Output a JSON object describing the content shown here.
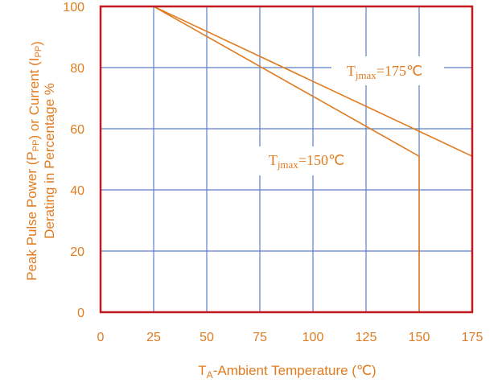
{
  "chart_data": {
    "type": "line",
    "xlabel": {
      "main": "T",
      "sub": "A",
      "rest": "-Ambient Temperature (℃)"
    },
    "ylabel": {
      "line1": [
        {
          "t": "Peak Pulse Power (P"
        },
        {
          "t": "PP",
          "sub": true
        },
        {
          "t": ") or Current (I"
        },
        {
          "t": "PP",
          "sub": true
        },
        {
          "t": ")"
        }
      ],
      "line2": "Derating in Percentage %"
    },
    "xlim": [
      0,
      175
    ],
    "ylim": [
      0,
      100
    ],
    "x_ticks": [
      "0",
      "25",
      "50",
      "75",
      "100",
      "125",
      "150",
      "175"
    ],
    "y_ticks": [
      "0",
      "20",
      "40",
      "60",
      "80",
      "100"
    ],
    "grid": true,
    "series": [
      {
        "name": "Tjmax=175℃",
        "x": [
          0,
          25,
          175
        ],
        "y": [
          100,
          100,
          51
        ]
      },
      {
        "name": "Tjmax=150℃",
        "x": [
          0,
          25,
          150,
          150
        ],
        "y": [
          100,
          100,
          51,
          0
        ]
      }
    ],
    "annotations": [
      {
        "main": "T",
        "sub": "jmax",
        "rest": "=175℃",
        "series": 0
      },
      {
        "main": "T",
        "sub": "jmax",
        "rest": "=150℃",
        "series": 1
      }
    ],
    "colors": {
      "series": "#e07b20",
      "grid": "#5b7fc8",
      "frame": "#c0191f",
      "text": "#e07b20"
    }
  }
}
